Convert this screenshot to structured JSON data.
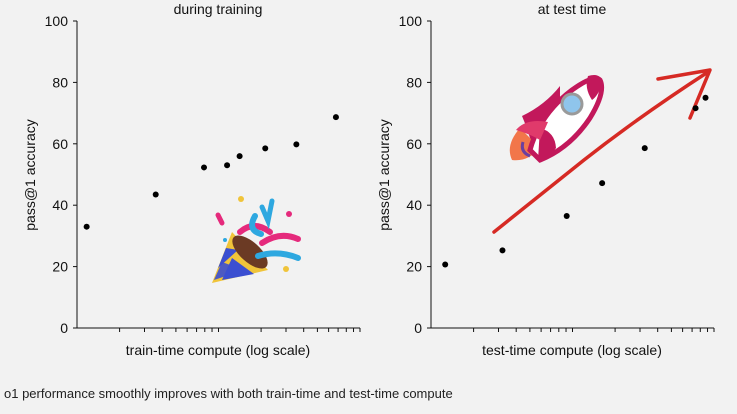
{
  "caption": "o1 performance smoothly improves with both train-time and test-time compute",
  "chart_data": [
    {
      "type": "scatter",
      "title": "during training",
      "xlabel": "train-time compute (log scale)",
      "ylabel": "pass@1 accuracy",
      "ylim": [
        0,
        100
      ],
      "yticks": [
        0,
        20,
        40,
        60,
        80,
        100
      ],
      "xscale": "log",
      "xlim": [
        1,
        100
      ],
      "grid": false,
      "points": [
        {
          "x": 1.17,
          "y": 33
        },
        {
          "x": 3.6,
          "y": 43.5
        },
        {
          "x": 7.9,
          "y": 52.3
        },
        {
          "x": 11.5,
          "y": 53
        },
        {
          "x": 14.1,
          "y": 56
        },
        {
          "x": 21.4,
          "y": 58.5
        },
        {
          "x": 35.5,
          "y": 59.8
        },
        {
          "x": 67.6,
          "y": 68.7
        }
      ],
      "decoration": "party-popper-icon"
    },
    {
      "type": "scatter",
      "title": "at test time",
      "xlabel": "test-time compute (log scale)",
      "ylabel": "pass@1 accuracy",
      "ylim": [
        0,
        100
      ],
      "yticks": [
        0,
        20,
        40,
        60,
        80,
        100
      ],
      "xscale": "log",
      "xlim": [
        1,
        100
      ],
      "grid": false,
      "points": [
        {
          "x": 1.26,
          "y": 20.7
        },
        {
          "x": 3.2,
          "y": 25.3
        },
        {
          "x": 9.1,
          "y": 36.5
        },
        {
          "x": 16.2,
          "y": 47.2
        },
        {
          "x": 32.4,
          "y": 58.6
        },
        {
          "x": 74.1,
          "y": 71.6
        },
        {
          "x": 87.1,
          "y": 75
        }
      ],
      "trend_arrow_color": "#d62a24",
      "decoration": "rocket-icon"
    }
  ]
}
